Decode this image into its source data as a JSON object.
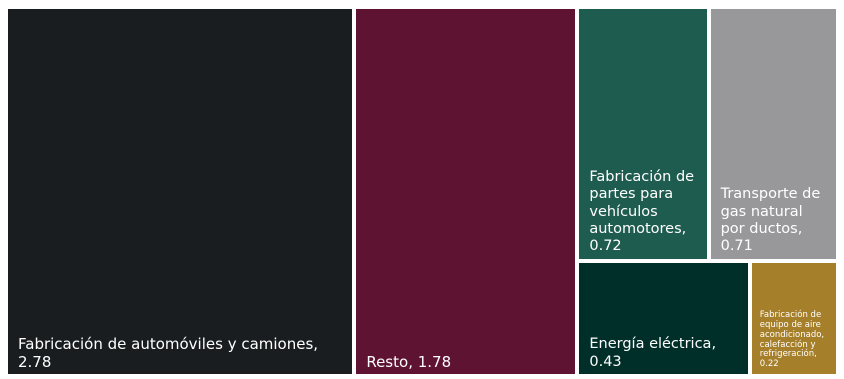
{
  "chart_data": {
    "type": "treemap",
    "title": "",
    "items": [
      {
        "label": "Fabricación de automóviles y camiones",
        "display_value": "2.78",
        "value": 2.78,
        "color": "#1a1d20"
      },
      {
        "label": "Resto",
        "display_value": "1.78",
        "value": 1.78,
        "color": "#5f1332"
      },
      {
        "label": "Fabricación de partes para vehículos automotores",
        "display_value": "0.72",
        "value": 0.72,
        "color": "#1f5c50"
      },
      {
        "label": "Transporte de gas natural por ductos",
        "display_value": "0.71",
        "value": 0.71,
        "color": "#98989a"
      },
      {
        "label": "Energía eléctrica",
        "display_value": "0.43",
        "value": 0.43,
        "color": "#002f2a"
      },
      {
        "label": "Fabricación de equipo de aire acondicionado, calefacción y refrigeración",
        "display_value": "0.22",
        "value": 0.22,
        "color": "#a67f2a"
      }
    ]
  }
}
